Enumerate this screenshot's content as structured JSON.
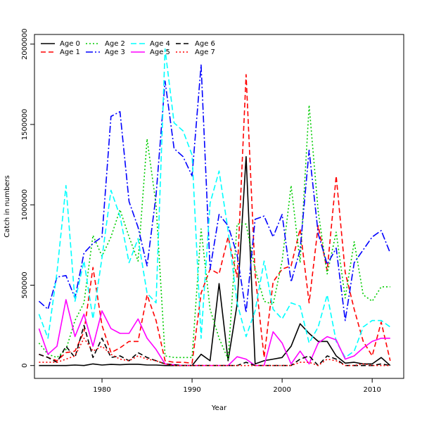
{
  "chart_data": {
    "type": "line",
    "title": "",
    "xlabel": "Year",
    "ylabel": "Catch in numbers",
    "xlim": [
      1972.5,
      2013.5
    ],
    "ylim": [
      -80000,
      2060000
    ],
    "xticks": [
      1980,
      1990,
      2000,
      2010
    ],
    "xtick_labels": [
      "1980",
      "1990",
      "2000",
      "2010"
    ],
    "yticks": [
      0,
      500000,
      1000000,
      1500000,
      2000000
    ],
    "ytick_labels": [
      "0",
      "500000",
      "1000000",
      "1500000",
      "2000000"
    ],
    "legend_position": "top-left",
    "x": [
      1973,
      1974,
      1975,
      1976,
      1977,
      1978,
      1979,
      1980,
      1981,
      1982,
      1983,
      1984,
      1985,
      1986,
      1987,
      1988,
      1989,
      1990,
      1991,
      1992,
      1993,
      1994,
      1995,
      1996,
      1997,
      1998,
      1999,
      2000,
      2001,
      2002,
      2003,
      2004,
      2005,
      2006,
      2007,
      2008,
      2009,
      2010,
      2011,
      2012
    ],
    "series": [
      {
        "name": "Age 0",
        "color": "#000000",
        "dash": "solid",
        "values": [
          0,
          0,
          0,
          0,
          3000,
          0,
          10000,
          3000,
          7000,
          5000,
          8000,
          8000,
          3000,
          3000,
          0,
          0,
          0,
          0,
          70000,
          30000,
          510000,
          30000,
          380000,
          1300000,
          10000,
          30000,
          40000,
          50000,
          120000,
          260000,
          200000,
          150000,
          150000,
          60000,
          15000,
          20000,
          10000,
          10000,
          50000,
          0
        ]
      },
      {
        "name": "Age 1",
        "color": "#ff0000",
        "dash": "7,4",
        "values": [
          70000,
          50000,
          30000,
          80000,
          90000,
          210000,
          610000,
          250000,
          80000,
          110000,
          150000,
          150000,
          440000,
          280000,
          30000,
          20000,
          20000,
          15000,
          450000,
          600000,
          570000,
          800000,
          550000,
          1810000,
          570000,
          50000,
          520000,
          600000,
          620000,
          850000,
          390000,
          870000,
          590000,
          1180000,
          580000,
          350000,
          150000,
          60000,
          270000,
          30000
        ]
      },
      {
        "name": "Age 2",
        "color": "#00cc00",
        "dash": "2,3",
        "values": [
          140000,
          70000,
          50000,
          100000,
          280000,
          390000,
          810000,
          680000,
          800000,
          970000,
          800000,
          650000,
          1410000,
          1000000,
          60000,
          50000,
          50000,
          50000,
          850000,
          350000,
          170000,
          40000,
          880000,
          880000,
          600000,
          400000,
          380000,
          650000,
          1120000,
          640000,
          1620000,
          960000,
          570000,
          830000,
          420000,
          770000,
          440000,
          400000,
          490000,
          490000
        ]
      },
      {
        "name": "Age 3",
        "color": "#0000ff",
        "dash": "10,3,2,3",
        "values": [
          400000,
          350000,
          550000,
          560000,
          420000,
          700000,
          760000,
          800000,
          1550000,
          1580000,
          1020000,
          860000,
          620000,
          1060000,
          1770000,
          1350000,
          1300000,
          1180000,
          1870000,
          600000,
          940000,
          870000,
          690000,
          330000,
          910000,
          930000,
          800000,
          940000,
          520000,
          720000,
          1340000,
          820000,
          630000,
          730000,
          280000,
          640000,
          720000,
          800000,
          840000,
          700000
        ]
      },
      {
        "name": "Age 4",
        "color": "#00ffff",
        "dash": "8,4",
        "values": [
          320000,
          170000,
          580000,
          1120000,
          400000,
          650000,
          290000,
          670000,
          1090000,
          930000,
          640000,
          790000,
          450000,
          390000,
          1970000,
          1510000,
          1460000,
          1310000,
          170000,
          1010000,
          1210000,
          840000,
          390000,
          180000,
          340000,
          650000,
          350000,
          290000,
          390000,
          370000,
          140000,
          240000,
          440000,
          150000,
          50000,
          90000,
          240000,
          280000,
          280000,
          240000
        ]
      },
      {
        "name": "Age 5",
        "color": "#ff00ff",
        "dash": "solid",
        "values": [
          230000,
          70000,
          120000,
          410000,
          180000,
          320000,
          120000,
          340000,
          230000,
          200000,
          200000,
          290000,
          170000,
          100000,
          10000,
          5000,
          0,
          0,
          0,
          0,
          0,
          0,
          55000,
          40000,
          0,
          0,
          210000,
          140000,
          10000,
          90000,
          10000,
          140000,
          180000,
          160000,
          40000,
          60000,
          110000,
          150000,
          170000,
          170000
        ]
      },
      {
        "name": "Age 6",
        "color": "#000000",
        "dash": "7,4",
        "values": [
          70000,
          50000,
          20000,
          120000,
          50000,
          250000,
          50000,
          170000,
          50000,
          60000,
          30000,
          80000,
          50000,
          30000,
          10000,
          5000,
          0,
          0,
          0,
          0,
          0,
          0,
          0,
          20000,
          0,
          0,
          0,
          0,
          0,
          40000,
          60000,
          0,
          60000,
          40000,
          0,
          0,
          0,
          0,
          10000,
          0
        ]
      },
      {
        "name": "Age 7",
        "color": "#ff0000",
        "dash": "2,3",
        "values": [
          20000,
          20000,
          20000,
          40000,
          60000,
          170000,
          90000,
          120000,
          70000,
          40000,
          30000,
          60000,
          40000,
          30000,
          10000,
          0,
          0,
          0,
          0,
          0,
          0,
          0,
          0,
          0,
          0,
          0,
          0,
          0,
          0,
          20000,
          20000,
          0,
          40000,
          30000,
          0,
          0,
          10000,
          0,
          0,
          0
        ]
      }
    ]
  }
}
